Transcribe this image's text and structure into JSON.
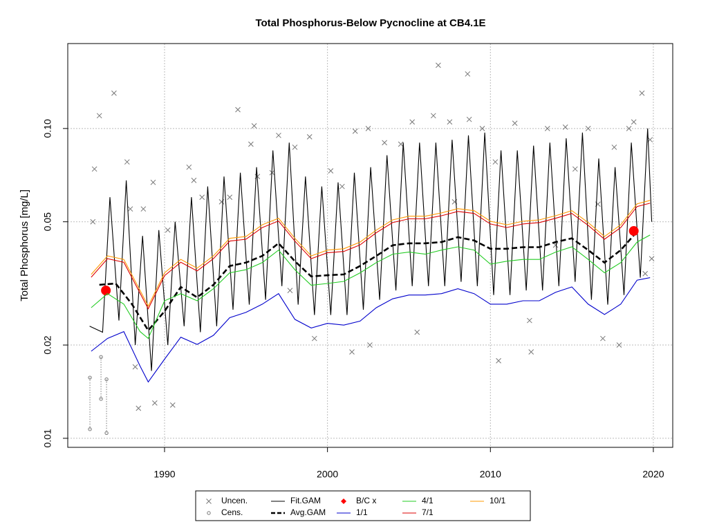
{
  "chart_data": {
    "type": "line",
    "title": "Total Phosphorus-Below Pycnocline at CB4.1E",
    "ylabel": "Total Phosphorus [mg/L]",
    "log_y": true,
    "grid": true,
    "xlim": [
      1984.06,
      2021.19
    ],
    "xticks": [
      1990,
      2000,
      2010,
      2020
    ],
    "ylim": [
      0.00935,
      0.188
    ],
    "yticks": [
      0.01,
      0.02,
      0.05,
      {
        "value": 0.1,
        "label": "0.10"
      }
    ],
    "series": [
      {
        "name": "Uncen.",
        "kind": "points",
        "color": "#777777",
        "x": [
          1985.7,
          1986,
          1986.9,
          1985.6,
          1987.7,
          1987.9,
          1988.2,
          1988.4,
          1988.7,
          1989.4,
          1989.3,
          1990.5,
          1990.2,
          1991.5,
          1991.8,
          1992.3,
          1993.5,
          1994.0,
          1994.5,
          1995.5,
          1995.3,
          1995.7,
          1996.6,
          1997.0,
          1997.7,
          1998.0,
          1998.9,
          1999.2,
          2000.2,
          2000.9,
          2001.5,
          2001.7,
          2002.5,
          2002.6,
          2003.5,
          2004.5,
          2005.2,
          2005.5,
          2006.5,
          2006.8,
          2007.5,
          2007.8,
          2008.6,
          2008.7,
          2009.5,
          2010.3,
          2010.5,
          2011.5,
          2012.5,
          2012.4,
          2013.5,
          2014,
          2014.6,
          2015.2,
          2016.0,
          2016.6,
          2016.9,
          2017.6,
          2017.9,
          2018.5,
          2018.8,
          2019.3,
          2019.5,
          2019.8,
          2019.9
        ],
        "values": [
          0.074,
          0.11,
          0.13,
          0.05,
          0.078,
          0.055,
          0.017,
          0.0125,
          0.055,
          0.013,
          0.067,
          0.0128,
          0.047,
          0.075,
          0.068,
          0.06,
          0.058,
          0.06,
          0.115,
          0.102,
          0.089,
          0.07,
          0.072,
          0.095,
          0.03,
          0.087,
          0.094,
          0.021,
          0.073,
          0.065,
          0.019,
          0.098,
          0.1,
          0.02,
          0.09,
          0.089,
          0.105,
          0.022,
          0.11,
          0.16,
          0.105,
          0.058,
          0.15,
          0.107,
          0.1,
          0.078,
          0.0178,
          0.104,
          0.019,
          0.024,
          0.1,
          0.042,
          0.101,
          0.074,
          0.1,
          0.057,
          0.021,
          0.087,
          0.02,
          0.1,
          0.105,
          0.13,
          0.034,
          0.092,
          0.038
        ]
      },
      {
        "name": "Cens.",
        "kind": "censored",
        "color": "#777777",
        "x": [
          1985.42,
          1986.1,
          1986.44
        ],
        "values": [
          0.0157,
          0.0183,
          0.0155
        ],
        "lower": [
          0.0107,
          0.0134,
          0.0104
        ]
      },
      {
        "name": "Fit.GAM",
        "kind": "line",
        "color": "#000000",
        "x": [
          1985.4,
          1986.2,
          1986.65,
          1987.2,
          1987.65,
          1988.2,
          1988.65,
          1989.2,
          1989.65,
          1990.2,
          1990.65,
          1991.2,
          1991.65,
          1992.2,
          1992.65,
          1993.2,
          1993.65,
          1994.2,
          1994.65,
          1995.2,
          1995.65,
          1996.2,
          1996.65,
          1997.2,
          1997.65,
          1998.2,
          1998.65,
          1999.2,
          1999.65,
          2000.2,
          2000.65,
          2001.2,
          2001.65,
          2002.2,
          2002.65,
          2003.2,
          2003.65,
          2004.2,
          2004.65,
          2005.2,
          2005.65,
          2006.2,
          2006.65,
          2007.2,
          2007.65,
          2008.2,
          2008.65,
          2009.2,
          2009.65,
          2010.2,
          2010.65,
          2011.2,
          2011.65,
          2012.2,
          2012.65,
          2013.2,
          2013.65,
          2014.2,
          2014.65,
          2015.2,
          2015.65,
          2016.2,
          2016.65,
          2017.2,
          2017.65,
          2018.2,
          2018.65,
          2019.2,
          2019.65,
          2019.9
        ],
        "values": [
          0.023,
          0.022,
          0.06,
          0.024,
          0.068,
          0.02,
          0.045,
          0.0165,
          0.047,
          0.02,
          0.05,
          0.023,
          0.06,
          0.022,
          0.065,
          0.023,
          0.07,
          0.026,
          0.072,
          0.027,
          0.075,
          0.028,
          0.085,
          0.031,
          0.09,
          0.027,
          0.07,
          0.025,
          0.065,
          0.025,
          0.067,
          0.025,
          0.072,
          0.026,
          0.075,
          0.028,
          0.082,
          0.03,
          0.09,
          0.031,
          0.09,
          0.031,
          0.09,
          0.031,
          0.092,
          0.032,
          0.095,
          0.031,
          0.097,
          0.029,
          0.085,
          0.029,
          0.085,
          0.03,
          0.088,
          0.03,
          0.09,
          0.031,
          0.093,
          0.032,
          0.097,
          0.028,
          0.08,
          0.027,
          0.075,
          0.029,
          0.09,
          0.033,
          0.1,
          0.05
        ]
      },
      {
        "name": "Avg.GAM",
        "kind": "line",
        "dash": true,
        "color": "#000000",
        "x": [
          1986,
          1987,
          1988,
          1989,
          1990,
          1991,
          1992,
          1993,
          1994,
          1995,
          1996,
          1997,
          1998,
          1999,
          2000,
          2001,
          2002,
          2003,
          2004,
          2005,
          2006,
          2007,
          2008,
          2009,
          2010,
          2011,
          2012,
          2013,
          2014,
          2015,
          2016,
          2017,
          2018,
          2019
        ],
        "values": [
          0.0313,
          0.0316,
          0.0271,
          0.0223,
          0.0257,
          0.0308,
          0.0285,
          0.0313,
          0.036,
          0.0369,
          0.0388,
          0.0426,
          0.0373,
          0.0333,
          0.0336,
          0.0338,
          0.036,
          0.0388,
          0.042,
          0.0426,
          0.0426,
          0.043,
          0.0446,
          0.0435,
          0.0409,
          0.0409,
          0.0414,
          0.0414,
          0.043,
          0.0442,
          0.0405,
          0.0369,
          0.0405,
          0.0465
        ]
      },
      {
        "name": "B/C x",
        "kind": "big-points",
        "color": "#ff0000",
        "x": [
          1986.4,
          2018.8
        ],
        "values": [
          0.03,
          0.0467
        ]
      },
      {
        "name": "1/1",
        "kind": "line",
        "color": "#0000cc",
        "x": [
          1985.5,
          1986.5,
          1987.5,
          1988.5,
          1989,
          1990,
          1991,
          1992,
          1993,
          1994,
          1995,
          1996,
          1997,
          1998,
          1999,
          2000,
          2001,
          2002,
          2003,
          2004,
          2005,
          2006,
          2007,
          2008,
          2009,
          2010,
          2011,
          2012,
          2013,
          2014,
          2015,
          2016,
          2017,
          2018,
          2019,
          2019.8
        ],
        "values": [
          0.0191,
          0.021,
          0.0221,
          0.0171,
          0.0152,
          0.018,
          0.0212,
          0.0201,
          0.0215,
          0.0245,
          0.0255,
          0.0271,
          0.0293,
          0.0242,
          0.0227,
          0.0235,
          0.0232,
          0.0239,
          0.0264,
          0.0282,
          0.029,
          0.029,
          0.0293,
          0.0304,
          0.0293,
          0.0271,
          0.0271,
          0.0278,
          0.0278,
          0.0296,
          0.0308,
          0.0271,
          0.0251,
          0.0271,
          0.0324,
          0.033
        ]
      },
      {
        "name": "4/1",
        "kind": "line",
        "color": "#22cc22",
        "x": [
          1985.5,
          1986.5,
          1987.5,
          1988.5,
          1989,
          1990,
          1991,
          1992,
          1993,
          1994,
          1995,
          1996,
          1997,
          1998,
          1999,
          2000,
          2001,
          2002,
          2003,
          2004,
          2005,
          2006,
          2007,
          2008,
          2009,
          2010,
          2011,
          2012,
          2013,
          2014,
          2015,
          2016,
          2017,
          2018,
          2019,
          2019.8
        ],
        "values": [
          0.0264,
          0.0293,
          0.0271,
          0.0221,
          0.021,
          0.0278,
          0.0293,
          0.0278,
          0.0304,
          0.0342,
          0.035,
          0.0369,
          0.0405,
          0.035,
          0.0312,
          0.0316,
          0.0321,
          0.0342,
          0.0369,
          0.0393,
          0.0399,
          0.0393,
          0.0405,
          0.0415,
          0.0405,
          0.0365,
          0.0373,
          0.0378,
          0.0378,
          0.0399,
          0.0415,
          0.0378,
          0.0342,
          0.0369,
          0.043,
          0.0453
        ]
      },
      {
        "name": "7/1",
        "kind": "line",
        "color": "#dd0000",
        "x": [
          1985.5,
          1986.5,
          1987.5,
          1988.5,
          1989,
          1990,
          1991,
          1992,
          1993,
          1994,
          1995,
          1996,
          1997,
          1998,
          1999,
          2000,
          2001,
          2002,
          2003,
          2004,
          2005,
          2006,
          2007,
          2008,
          2009,
          2010,
          2011,
          2012,
          2013,
          2014,
          2015,
          2016,
          2017,
          2018,
          2019,
          2019.8
        ],
        "values": [
          0.0331,
          0.038,
          0.037,
          0.0294,
          0.0262,
          0.0335,
          0.037,
          0.0347,
          0.038,
          0.0433,
          0.0439,
          0.0479,
          0.0503,
          0.0433,
          0.038,
          0.0397,
          0.0401,
          0.0421,
          0.0461,
          0.0497,
          0.0511,
          0.0511,
          0.0523,
          0.054,
          0.0532,
          0.0492,
          0.0479,
          0.0492,
          0.0497,
          0.0513,
          0.0532,
          0.0487,
          0.0439,
          0.0479,
          0.056,
          0.0574
        ]
      },
      {
        "name": "10/1",
        "kind": "line",
        "color": "#ff9900",
        "x": [
          1985.5,
          1986.5,
          1987.5,
          1988.5,
          1989,
          1990,
          1991,
          1992,
          1993,
          1994,
          1995,
          1996,
          1997,
          1998,
          1999,
          2000,
          2001,
          2002,
          2003,
          2004,
          2005,
          2006,
          2007,
          2008,
          2009,
          2010,
          2011,
          2012,
          2013,
          2014,
          2015,
          2016,
          2017,
          2018,
          2019,
          2019.8
        ],
        "values": [
          0.0338,
          0.0388,
          0.0378,
          0.03,
          0.0267,
          0.0342,
          0.0378,
          0.0354,
          0.0388,
          0.0442,
          0.0448,
          0.0489,
          0.0513,
          0.0442,
          0.0388,
          0.0405,
          0.0409,
          0.043,
          0.047,
          0.0507,
          0.0521,
          0.0521,
          0.0534,
          0.0551,
          0.0543,
          0.0502,
          0.0489,
          0.0502,
          0.0507,
          0.0523,
          0.0543,
          0.0497,
          0.0448,
          0.0489,
          0.0571,
          0.0586
        ]
      }
    ]
  }
}
